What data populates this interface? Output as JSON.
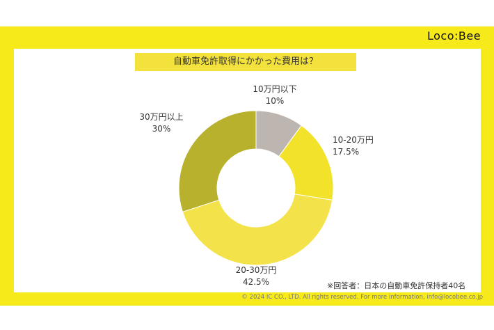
{
  "logo": "Loco:Bee",
  "copyright": "© 2024 IC CO., LTD. All rights reserved. For more information, info@locobee.co.jp",
  "footnote": "※回答者：日本の自動車免許保持者40名",
  "colors": {
    "frame": "#f7ea1a",
    "slice_1": "#bdb5b0",
    "slice_2": "#f2e32a",
    "slice_3": "#f4e24a",
    "slice_4": "#b8b12e"
  },
  "chart_data": {
    "type": "pie",
    "title": "自動車免許取得にかかった費用は？",
    "categories": [
      "10万円以下",
      "10-20万円",
      "20-30万円",
      "30万円以上"
    ],
    "values": [
      10,
      17.5,
      42.5,
      30
    ],
    "value_labels": [
      "10%",
      "17.5%",
      "42.5%",
      "30%"
    ],
    "donut": true
  }
}
